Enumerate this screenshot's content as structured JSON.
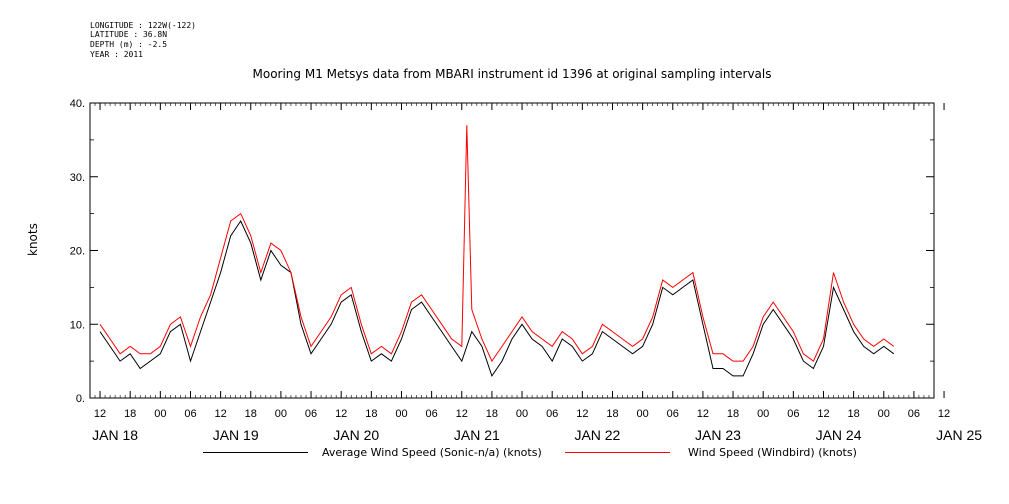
{
  "header": {
    "longitude": "LONGITUDE : 122W(-122)",
    "latitude": "LATITUDE : 36.8N",
    "depth": "DEPTH (m) : -2.5",
    "year": "YEAR : 2011"
  },
  "chart_data": {
    "type": "line",
    "title": "Mooring M1 Metsys data from MBARI instrument id 1396 at original sampling intervals",
    "ylabel": "knots",
    "ylim": [
      0,
      40
    ],
    "yticks": [
      "0.",
      "10.",
      "20.",
      "30.",
      "40."
    ],
    "xlim_hours": [
      -2,
      166
    ],
    "xaxis_time_labels": [
      "12",
      "18",
      "00",
      "06",
      "12",
      "18",
      "00",
      "06",
      "12",
      "18",
      "00",
      "06",
      "12",
      "18",
      "00",
      "06",
      "12",
      "18",
      "00",
      "06",
      "12",
      "18",
      "00",
      "06",
      "12",
      "18",
      "00",
      "06",
      "12"
    ],
    "xaxis_day_labels": [
      "JAN 18",
      "JAN 19",
      "JAN 20",
      "JAN 21",
      "JAN 22",
      "JAN 23",
      "JAN 24",
      "JAN 25"
    ],
    "series": [
      {
        "name": "Average Wind Speed (Sonic-n/a) (knots)",
        "color": "#000000",
        "points_hour_value": [
          [
            0,
            9
          ],
          [
            2,
            7
          ],
          [
            4,
            5
          ],
          [
            6,
            6
          ],
          [
            8,
            4
          ],
          [
            10,
            5
          ],
          [
            12,
            6
          ],
          [
            14,
            9
          ],
          [
            16,
            10
          ],
          [
            18,
            5
          ],
          [
            20,
            9
          ],
          [
            22,
            13
          ],
          [
            24,
            17
          ],
          [
            26,
            22
          ],
          [
            28,
            24
          ],
          [
            30,
            21
          ],
          [
            32,
            16
          ],
          [
            34,
            20
          ],
          [
            36,
            18
          ],
          [
            38,
            17
          ],
          [
            40,
            10
          ],
          [
            42,
            6
          ],
          [
            44,
            8
          ],
          [
            46,
            10
          ],
          [
            48,
            13
          ],
          [
            50,
            14
          ],
          [
            52,
            9
          ],
          [
            54,
            5
          ],
          [
            56,
            6
          ],
          [
            58,
            5
          ],
          [
            60,
            8
          ],
          [
            62,
            12
          ],
          [
            64,
            13
          ],
          [
            66,
            11
          ],
          [
            68,
            9
          ],
          [
            70,
            7
          ],
          [
            72,
            5
          ],
          [
            74,
            9
          ],
          [
            76,
            7
          ],
          [
            78,
            3
          ],
          [
            80,
            5
          ],
          [
            82,
            8
          ],
          [
            84,
            10
          ],
          [
            86,
            8
          ],
          [
            88,
            7
          ],
          [
            90,
            5
          ],
          [
            92,
            8
          ],
          [
            94,
            7
          ],
          [
            96,
            5
          ],
          [
            98,
            6
          ],
          [
            100,
            9
          ],
          [
            102,
            8
          ],
          [
            104,
            7
          ],
          [
            106,
            6
          ],
          [
            108,
            7
          ],
          [
            110,
            10
          ],
          [
            112,
            15
          ],
          [
            114,
            14
          ],
          [
            116,
            15
          ],
          [
            118,
            16
          ],
          [
            120,
            10
          ],
          [
            122,
            4
          ],
          [
            124,
            4
          ],
          [
            126,
            3
          ],
          [
            128,
            3
          ],
          [
            130,
            6
          ],
          [
            132,
            10
          ],
          [
            134,
            12
          ],
          [
            136,
            10
          ],
          [
            138,
            8
          ],
          [
            140,
            5
          ],
          [
            142,
            4
          ],
          [
            144,
            7
          ],
          [
            146,
            15
          ],
          [
            148,
            12
          ],
          [
            150,
            9
          ],
          [
            152,
            7
          ],
          [
            154,
            6
          ],
          [
            156,
            7
          ],
          [
            158,
            6
          ]
        ]
      },
      {
        "name": "Wind Speed (Windbird) (knots)",
        "color": "#ff0000",
        "points_hour_value": [
          [
            0,
            10
          ],
          [
            2,
            8
          ],
          [
            4,
            6
          ],
          [
            6,
            7
          ],
          [
            8,
            6
          ],
          [
            10,
            6
          ],
          [
            12,
            7
          ],
          [
            14,
            10
          ],
          [
            16,
            11
          ],
          [
            18,
            7
          ],
          [
            20,
            11
          ],
          [
            22,
            14
          ],
          [
            24,
            19
          ],
          [
            26,
            24
          ],
          [
            28,
            25
          ],
          [
            30,
            22
          ],
          [
            32,
            17
          ],
          [
            34,
            21
          ],
          [
            36,
            20
          ],
          [
            38,
            17
          ],
          [
            40,
            11
          ],
          [
            42,
            7
          ],
          [
            44,
            9
          ],
          [
            46,
            11
          ],
          [
            48,
            14
          ],
          [
            50,
            15
          ],
          [
            52,
            10
          ],
          [
            54,
            6
          ],
          [
            56,
            7
          ],
          [
            58,
            6
          ],
          [
            60,
            9
          ],
          [
            62,
            13
          ],
          [
            64,
            14
          ],
          [
            66,
            12
          ],
          [
            68,
            10
          ],
          [
            70,
            8
          ],
          [
            72,
            7
          ],
          [
            73,
            37
          ],
          [
            74,
            12
          ],
          [
            76,
            8
          ],
          [
            78,
            5
          ],
          [
            80,
            7
          ],
          [
            82,
            9
          ],
          [
            84,
            11
          ],
          [
            86,
            9
          ],
          [
            88,
            8
          ],
          [
            90,
            7
          ],
          [
            92,
            9
          ],
          [
            94,
            8
          ],
          [
            96,
            6
          ],
          [
            98,
            7
          ],
          [
            100,
            10
          ],
          [
            102,
            9
          ],
          [
            104,
            8
          ],
          [
            106,
            7
          ],
          [
            108,
            8
          ],
          [
            110,
            11
          ],
          [
            112,
            16
          ],
          [
            114,
            15
          ],
          [
            116,
            16
          ],
          [
            118,
            17
          ],
          [
            120,
            11
          ],
          [
            122,
            6
          ],
          [
            124,
            6
          ],
          [
            126,
            5
          ],
          [
            128,
            5
          ],
          [
            130,
            7
          ],
          [
            132,
            11
          ],
          [
            134,
            13
          ],
          [
            136,
            11
          ],
          [
            138,
            9
          ],
          [
            140,
            6
          ],
          [
            142,
            5
          ],
          [
            144,
            8
          ],
          [
            146,
            17
          ],
          [
            148,
            13
          ],
          [
            150,
            10
          ],
          [
            152,
            8
          ],
          [
            154,
            7
          ],
          [
            156,
            8
          ],
          [
            158,
            7
          ]
        ]
      }
    ]
  }
}
